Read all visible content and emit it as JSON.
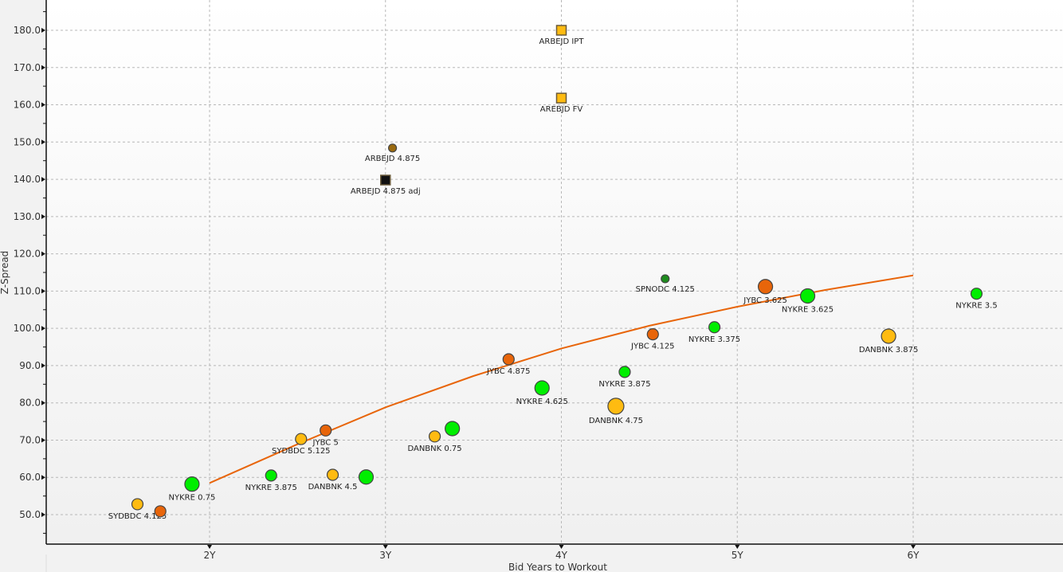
{
  "chart_data": {
    "type": "scatter",
    "title": "",
    "xlabel": "Bid Years to Workout",
    "ylabel": "Z-Spread",
    "xlim": [
      1.07,
      6.86
    ],
    "ylim": [
      42.5,
      188
    ],
    "x_ticks": [
      {
        "value": 2,
        "label": "2Y"
      },
      {
        "value": 3,
        "label": "3Y"
      },
      {
        "value": 4,
        "label": "4Y"
      },
      {
        "value": 5,
        "label": "5Y"
      },
      {
        "value": 6,
        "label": "6Y"
      }
    ],
    "y_ticks": [
      {
        "value": 50,
        "label": "50.0"
      },
      {
        "value": 60,
        "label": "60.0"
      },
      {
        "value": 70,
        "label": "70.0"
      },
      {
        "value": 80,
        "label": "80.0"
      },
      {
        "value": 90,
        "label": "90.0"
      },
      {
        "value": 100,
        "label": "100.0"
      },
      {
        "value": 110,
        "label": "110.0"
      },
      {
        "value": 120,
        "label": "120.0"
      },
      {
        "value": 130,
        "label": "130.0"
      },
      {
        "value": 140,
        "label": "140.0"
      },
      {
        "value": 150,
        "label": "150.0"
      },
      {
        "value": 160,
        "label": "160.0"
      },
      {
        "value": 170,
        "label": "170.0"
      },
      {
        "value": 180,
        "label": "180.0"
      }
    ],
    "grid": true,
    "colors": {
      "green": "#00ee00",
      "orange": "#ffbb11",
      "red_orange": "#e8650a",
      "dark_green": "#1e8c1e",
      "brown": "#9a6a10",
      "black": "#111111",
      "curve": "#e8650a"
    },
    "points": [
      {
        "label": "SYDBDC 4.125",
        "x": 1.59,
        "y": 52.8,
        "color": "orange",
        "size": "small",
        "shape": "circle",
        "show_label": true
      },
      {
        "label": "",
        "x": 1.72,
        "y": 50.9,
        "color": "red_orange",
        "size": "small",
        "shape": "circle",
        "show_label": false
      },
      {
        "label": "NYKRE 0.75",
        "x": 1.9,
        "y": 58.2,
        "color": "green",
        "size": "large",
        "shape": "circle",
        "show_label": true
      },
      {
        "label": "NYKRE 3.875",
        "x": 2.35,
        "y": 60.5,
        "color": "green",
        "size": "small",
        "shape": "circle",
        "show_label": true
      },
      {
        "label": "SYDBDC 5.125",
        "x": 2.52,
        "y": 70.3,
        "color": "orange",
        "size": "small",
        "shape": "circle",
        "show_label": true
      },
      {
        "label": "JYBC 5",
        "x": 2.66,
        "y": 72.6,
        "color": "red_orange",
        "size": "small",
        "shape": "circle",
        "show_label": true
      },
      {
        "label": "DANBNK 4.5",
        "x": 2.7,
        "y": 60.7,
        "color": "orange",
        "size": "small",
        "shape": "circle",
        "show_label": true
      },
      {
        "label": "",
        "x": 2.89,
        "y": 60.1,
        "color": "green",
        "size": "large",
        "shape": "circle",
        "show_label": false
      },
      {
        "label": "DANBNK 0.75",
        "x": 3.28,
        "y": 71.0,
        "color": "orange",
        "size": "small",
        "shape": "circle",
        "show_label": true
      },
      {
        "label": "",
        "x": 3.38,
        "y": 73.1,
        "color": "green",
        "size": "large",
        "shape": "circle",
        "show_label": false
      },
      {
        "label": "JYBC 4.875",
        "x": 3.7,
        "y": 91.7,
        "color": "red_orange",
        "size": "small",
        "shape": "circle",
        "show_label": true
      },
      {
        "label": "NYKRE 4.625",
        "x": 3.89,
        "y": 84.0,
        "color": "green",
        "size": "large",
        "shape": "circle",
        "show_label": true
      },
      {
        "label": "DANBNK 4.75",
        "x": 4.31,
        "y": 79.1,
        "color": "orange",
        "size": "xlarge",
        "shape": "circle",
        "show_label": true
      },
      {
        "label": "NYKRE 3.875",
        "x": 4.36,
        "y": 88.3,
        "color": "green",
        "size": "small",
        "shape": "circle",
        "show_label": true
      },
      {
        "label": "JYBC 4.125",
        "x": 4.52,
        "y": 98.4,
        "color": "red_orange",
        "size": "small",
        "shape": "circle",
        "show_label": true
      },
      {
        "label": "SPNODC 4.125",
        "x": 4.59,
        "y": 113.3,
        "color": "dark_green",
        "size": "tiny",
        "shape": "circle",
        "show_label": true
      },
      {
        "label": "NYKRE 3.375",
        "x": 4.87,
        "y": 100.3,
        "color": "green",
        "size": "small",
        "shape": "circle",
        "show_label": true
      },
      {
        "label": "JYBC 3.625",
        "x": 5.16,
        "y": 111.2,
        "color": "red_orange",
        "size": "large",
        "shape": "circle",
        "show_label": true
      },
      {
        "label": "NYKRE 3.625",
        "x": 5.4,
        "y": 108.7,
        "color": "green",
        "size": "large",
        "shape": "circle",
        "show_label": true
      },
      {
        "label": "DANBNK 3.875",
        "x": 5.86,
        "y": 97.9,
        "color": "orange",
        "size": "large",
        "shape": "circle",
        "show_label": true
      },
      {
        "label": "NYKRE 3.5",
        "x": 6.36,
        "y": 109.3,
        "color": "green",
        "size": "small",
        "shape": "circle",
        "show_label": true
      },
      {
        "label": "ARBEJD 4.875",
        "x": 3.04,
        "y": 148.4,
        "color": "brown",
        "size": "tiny",
        "shape": "circle",
        "show_label": true
      },
      {
        "label": "ARBEJD 4.875 adj",
        "x": 3.0,
        "y": 139.8,
        "color": "black",
        "size": "small",
        "shape": "square",
        "show_label": true
      },
      {
        "label": "ARBEJD IPT",
        "x": 4.0,
        "y": 180.0,
        "color": "orange",
        "size": "small",
        "shape": "square",
        "show_label": true
      },
      {
        "label": "AREBJD FV",
        "x": 4.0,
        "y": 161.8,
        "color": "orange",
        "size": "small",
        "shape": "square",
        "show_label": true
      }
    ],
    "curve": {
      "name": "fitted-curve",
      "x": [
        2.0,
        2.5,
        3.0,
        3.5,
        4.0,
        4.5,
        5.0,
        5.5,
        6.0
      ],
      "y": [
        58.5,
        68.9,
        78.8,
        87.2,
        94.6,
        100.7,
        105.8,
        110.3,
        114.2
      ]
    }
  }
}
